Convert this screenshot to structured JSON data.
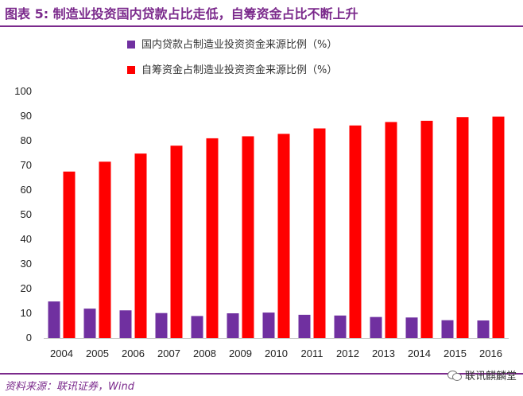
{
  "header": {
    "title": "图表 5:  制造业投资国内贷款占比走低，自筹资金占比不断上升"
  },
  "footer": {
    "source": "资料来源：联讯证券，Wind",
    "watermark": "联讯麒麟堂",
    "watermark_icon": "wechat-icon"
  },
  "colors": {
    "accent": "#7b2a8c",
    "series_domestic_loans": "#7030a0",
    "series_self_raised": "#ff0000"
  },
  "chart_data": {
    "type": "bar",
    "title": "",
    "xlabel": "",
    "ylabel": "",
    "categories": [
      "2004",
      "2005",
      "2006",
      "2007",
      "2008",
      "2009",
      "2010",
      "2011",
      "2012",
      "2013",
      "2014",
      "2015",
      "2016"
    ],
    "series": [
      {
        "name": "国内贷款占制造业投资资金来源比例（%）",
        "values": [
          14.8,
          11.9,
          11.2,
          10.1,
          8.9,
          10.0,
          10.3,
          9.4,
          9.1,
          8.5,
          8.3,
          7.2,
          7.1
        ]
      },
      {
        "name": "自筹资金占制造业投资资金来源比例（%）",
        "values": [
          67.5,
          71.5,
          74.8,
          78.0,
          81.0,
          81.8,
          82.8,
          85.0,
          86.2,
          87.6,
          88.1,
          89.6,
          89.8
        ]
      }
    ],
    "ylim": [
      0,
      100
    ],
    "yticks": [
      0,
      10,
      20,
      30,
      40,
      50,
      60,
      70,
      80,
      90,
      100
    ],
    "grid": false,
    "legend": "top-left"
  }
}
